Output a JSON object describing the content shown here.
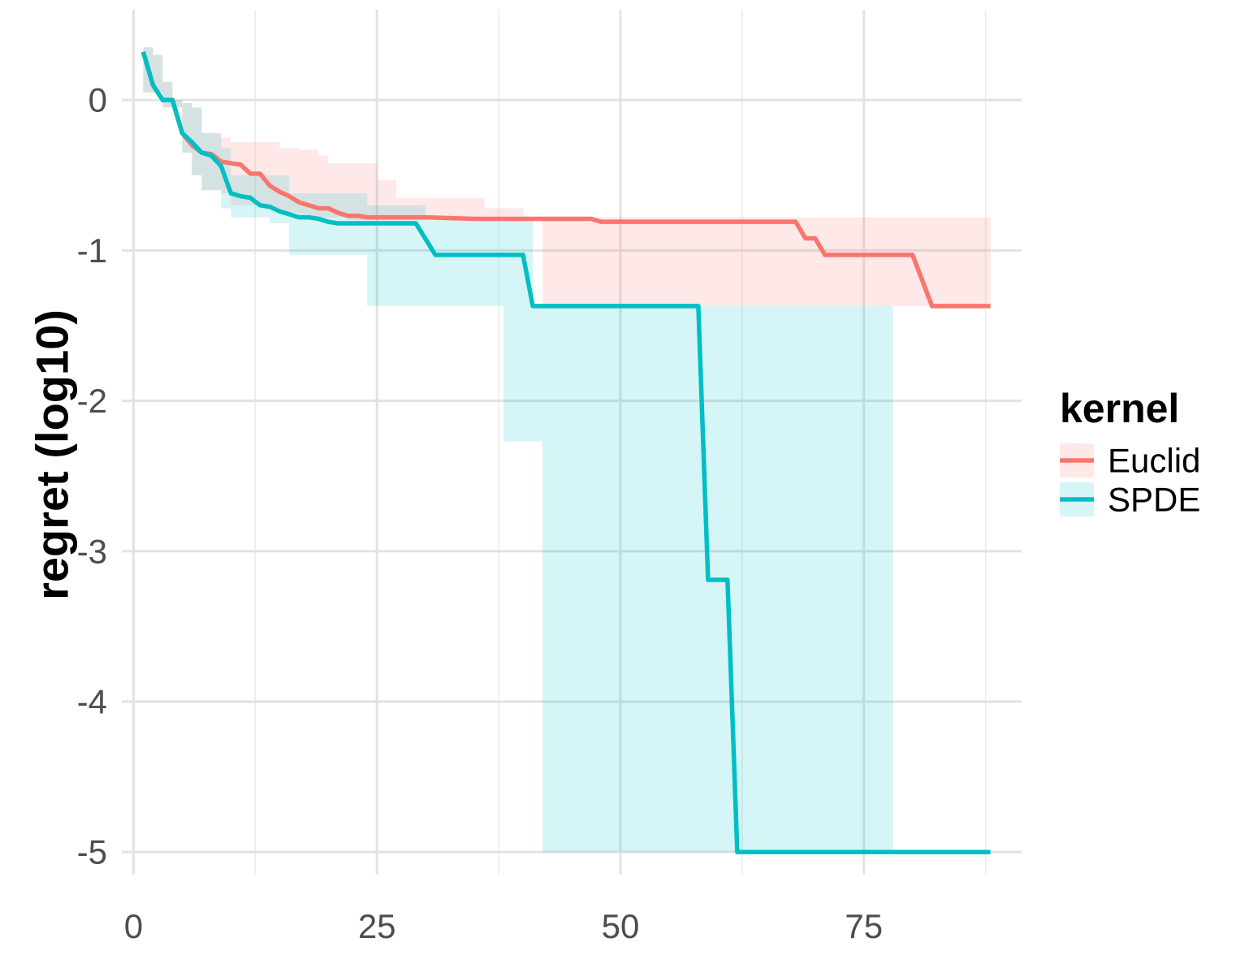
{
  "chart_data": {
    "type": "line",
    "title": "",
    "xlabel": "",
    "ylabel": "regret (log10)",
    "xlim": [
      -1.2,
      91.2
    ],
    "ylim": [
      -5.15,
      0.6
    ],
    "x_ticks": [
      0,
      25,
      50,
      75
    ],
    "y_ticks": [
      0,
      -1,
      -2,
      -3,
      -4,
      -5
    ],
    "grid": true,
    "legend": {
      "title": "kernel",
      "position": "right"
    },
    "series": [
      {
        "name": "Euclid",
        "color": "#F8766D",
        "line": [
          [
            1,
            0.32
          ],
          [
            2,
            0.1
          ],
          [
            3,
            0
          ],
          [
            4,
            0
          ],
          [
            5,
            -0.22
          ],
          [
            6,
            -0.3
          ],
          [
            7,
            -0.35
          ],
          [
            8,
            -0.36
          ],
          [
            9,
            -0.41
          ],
          [
            10,
            -0.42
          ],
          [
            11,
            -0.43
          ],
          [
            12,
            -0.49
          ],
          [
            13,
            -0.49
          ],
          [
            14,
            -0.57
          ],
          [
            15,
            -0.61
          ],
          [
            16,
            -0.64
          ],
          [
            17,
            -0.68
          ],
          [
            18,
            -0.7
          ],
          [
            19,
            -0.72
          ],
          [
            20,
            -0.72
          ],
          [
            21,
            -0.75
          ],
          [
            22,
            -0.77
          ],
          [
            23,
            -0.77
          ],
          [
            24,
            -0.78
          ],
          [
            30,
            -0.78
          ],
          [
            35,
            -0.79
          ],
          [
            47,
            -0.79
          ],
          [
            48,
            -0.81
          ],
          [
            68,
            -0.81
          ],
          [
            69,
            -0.92
          ],
          [
            70,
            -0.92
          ],
          [
            71,
            -1.03
          ],
          [
            80,
            -1.03
          ],
          [
            82,
            -1.37
          ],
          [
            88,
            -1.37
          ]
        ],
        "band": [
          [
            1,
            0.35,
            0.05
          ],
          [
            2,
            0.3,
            0.05
          ],
          [
            3,
            0.12,
            -0.05
          ],
          [
            4,
            0,
            -0.05
          ],
          [
            5,
            -0.02,
            -0.35
          ],
          [
            6,
            -0.05,
            -0.5
          ],
          [
            7,
            -0.22,
            -0.6
          ],
          [
            9,
            -0.25,
            -0.62
          ],
          [
            10,
            -0.28,
            -0.7
          ],
          [
            14,
            -0.28,
            -0.72
          ],
          [
            15,
            -0.32,
            -0.75
          ],
          [
            17,
            -0.33,
            -0.76
          ],
          [
            18,
            -0.33,
            -0.78
          ],
          [
            19,
            -0.37,
            -0.78
          ],
          [
            20,
            -0.42,
            -0.78
          ],
          [
            22,
            -0.42,
            -0.8
          ],
          [
            25,
            -0.53,
            -0.8
          ],
          [
            27,
            -0.65,
            -0.8
          ],
          [
            36,
            -0.72,
            -0.8
          ],
          [
            40,
            -0.78,
            -0.8
          ],
          [
            42,
            -0.78,
            -1.37
          ],
          [
            88,
            -0.79,
            -5.0
          ]
        ]
      },
      {
        "name": "SPDE",
        "color": "#00BFC4",
        "line": [
          [
            1,
            0.32
          ],
          [
            2,
            0.1
          ],
          [
            3,
            0
          ],
          [
            4,
            0
          ],
          [
            5,
            -0.22
          ],
          [
            6,
            -0.28
          ],
          [
            7,
            -0.35
          ],
          [
            8,
            -0.37
          ],
          [
            9,
            -0.44
          ],
          [
            10,
            -0.62
          ],
          [
            11,
            -0.64
          ],
          [
            12,
            -0.65
          ],
          [
            13,
            -0.7
          ],
          [
            14,
            -0.71
          ],
          [
            15,
            -0.74
          ],
          [
            16,
            -0.76
          ],
          [
            17,
            -0.78
          ],
          [
            18,
            -0.78
          ],
          [
            19,
            -0.79
          ],
          [
            20,
            -0.81
          ],
          [
            21,
            -0.82
          ],
          [
            29,
            -0.82
          ],
          [
            31,
            -1.03
          ],
          [
            40,
            -1.03
          ],
          [
            41,
            -1.37
          ],
          [
            58,
            -1.37
          ],
          [
            59,
            -3.19
          ],
          [
            61,
            -3.19
          ],
          [
            62,
            -5.0
          ],
          [
            88,
            -5.0
          ]
        ],
        "band": [
          [
            1,
            0.35,
            0.05
          ],
          [
            2,
            0.3,
            0.05
          ],
          [
            3,
            0.12,
            -0.05
          ],
          [
            4,
            0,
            -0.05
          ],
          [
            5,
            -0.02,
            -0.35
          ],
          [
            6,
            -0.05,
            -0.5
          ],
          [
            7,
            -0.22,
            -0.6
          ],
          [
            9,
            -0.32,
            -0.72
          ],
          [
            10,
            -0.5,
            -0.78
          ],
          [
            14,
            -0.5,
            -0.82
          ],
          [
            16,
            -0.62,
            -1.03
          ],
          [
            24,
            -0.7,
            -1.37
          ],
          [
            30,
            -0.8,
            -1.37
          ],
          [
            38,
            -0.8,
            -2.27
          ],
          [
            41,
            -1.37,
            -2.27
          ],
          [
            42,
            -1.37,
            -5.0
          ],
          [
            78,
            -1.37,
            -5.0
          ]
        ]
      }
    ]
  }
}
